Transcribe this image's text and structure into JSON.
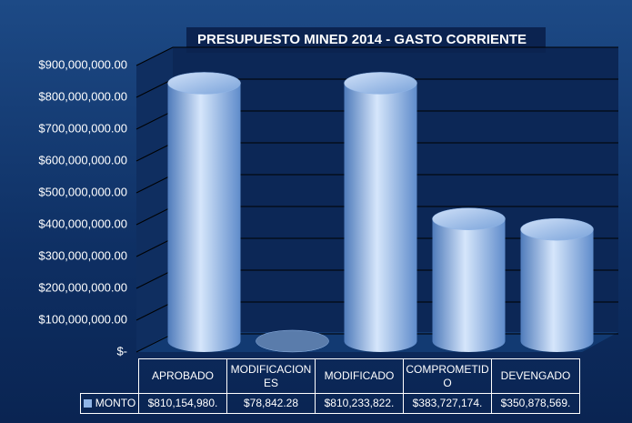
{
  "chart_data": {
    "type": "cylinder",
    "title": "PRESUPUESTO  MINED 2014 - GASTO CORRIENTE",
    "categories": [
      "APROBADO",
      "MODIFICACIONES",
      "MODIFICADO",
      "COMPROMETIDO",
      "DEVENGADO"
    ],
    "series": [
      {
        "name": "MONTO",
        "color": "#8fb4e6",
        "values": [
          810154980,
          78842.28,
          810233822,
          383727174,
          350878569
        ],
        "value_labels": [
          "$810,154,980.",
          "$78,842.28",
          "$810,233,822.",
          "$383,727,174.",
          "$350,878,569."
        ]
      }
    ],
    "ylim": [
      0,
      900000000
    ],
    "yticks": [
      {
        "value": 0,
        "label": "$-"
      },
      {
        "value": 100000000,
        "label": "$100,000,000.00"
      },
      {
        "value": 200000000,
        "label": "$200,000,000.00"
      },
      {
        "value": 300000000,
        "label": "$300,000,000.00"
      },
      {
        "value": 400000000,
        "label": "$400,000,000.00"
      },
      {
        "value": 500000000,
        "label": "$500,000,000.00"
      },
      {
        "value": 600000000,
        "label": "$600,000,000.00"
      },
      {
        "value": 700000000,
        "label": "$700,000,000.00"
      },
      {
        "value": 800000000,
        "label": "$800,000,000.00"
      },
      {
        "value": 900000000,
        "label": "$900,000,000.00"
      }
    ],
    "grid": true
  }
}
